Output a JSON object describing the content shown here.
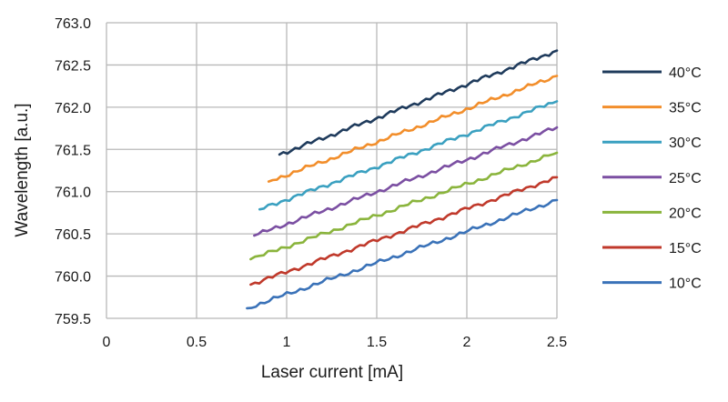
{
  "chart_data": {
    "type": "line",
    "title": "",
    "xlabel": "Laser current [mA]",
    "ylabel": "Wavelength [a.u.]",
    "xlim": [
      0,
      2.5
    ],
    "ylim": [
      759.5,
      763.0
    ],
    "xticks": [
      0,
      0.5,
      1,
      1.5,
      2,
      2.5
    ],
    "xtick_labels": [
      "0",
      "0.5",
      "1",
      "1.5",
      "2",
      "2.5"
    ],
    "yticks": [
      759.5,
      760.0,
      760.5,
      761.0,
      761.5,
      762.0,
      762.5,
      763.0
    ],
    "ytick_labels": [
      "759.5",
      "760.0",
      "760.5",
      "761.0",
      "761.5",
      "762.0",
      "762.5",
      "763.0"
    ],
    "grid": true,
    "legend_position": "right",
    "series": [
      {
        "name": "40°C",
        "color": "#1f3b5c",
        "x": [
          0.96,
          2.5
        ],
        "y": [
          761.44,
          762.67
        ]
      },
      {
        "name": "35°C",
        "color": "#f28e2b",
        "x": [
          0.9,
          2.5
        ],
        "y": [
          761.12,
          762.37
        ]
      },
      {
        "name": "30°C",
        "color": "#3aa0c0",
        "x": [
          0.85,
          2.5
        ],
        "y": [
          760.79,
          762.07
        ]
      },
      {
        "name": "25°C",
        "color": "#7b4fa2",
        "x": [
          0.82,
          2.5
        ],
        "y": [
          760.48,
          761.76
        ]
      },
      {
        "name": "20°C",
        "color": "#8ab43c",
        "x": [
          0.8,
          2.5
        ],
        "y": [
          760.2,
          761.46
        ]
      },
      {
        "name": "15°C",
        "color": "#c0392b",
        "x": [
          0.8,
          2.5
        ],
        "y": [
          759.9,
          761.17
        ]
      },
      {
        "name": "10°C",
        "color": "#3a72b8",
        "x": [
          0.78,
          2.5
        ],
        "y": [
          759.62,
          760.9
        ]
      }
    ]
  }
}
